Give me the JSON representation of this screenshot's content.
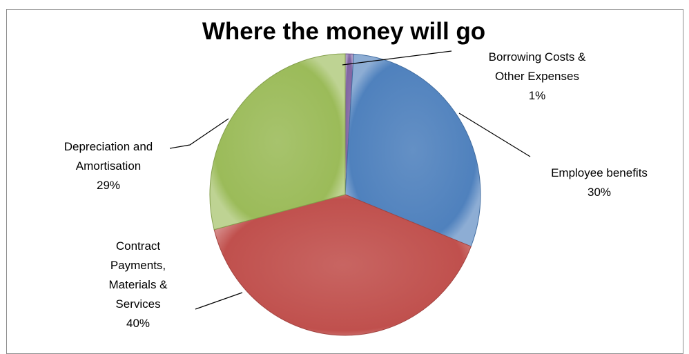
{
  "chart_data": {
    "type": "pie",
    "title": "Where the money will go",
    "slices": [
      {
        "label_lines": [
          "Borrowing Costs &",
          "Other Expenses"
        ],
        "percent_label": "1%",
        "value": 1,
        "color": "#8064a2"
      },
      {
        "label_lines": [
          "Employee benefits"
        ],
        "percent_label": "30%",
        "value": 30,
        "color": "#4f81bd"
      },
      {
        "label_lines": [
          "Contract",
          "Payments,",
          "Materials &",
          "Services"
        ],
        "percent_label": "40%",
        "value": 40,
        "color": "#c0504d"
      },
      {
        "label_lines": [
          "Depreciation and",
          "Amortisation"
        ],
        "percent_label": "29%",
        "value": 29,
        "color": "#9bbb59"
      }
    ],
    "legend": "none"
  }
}
